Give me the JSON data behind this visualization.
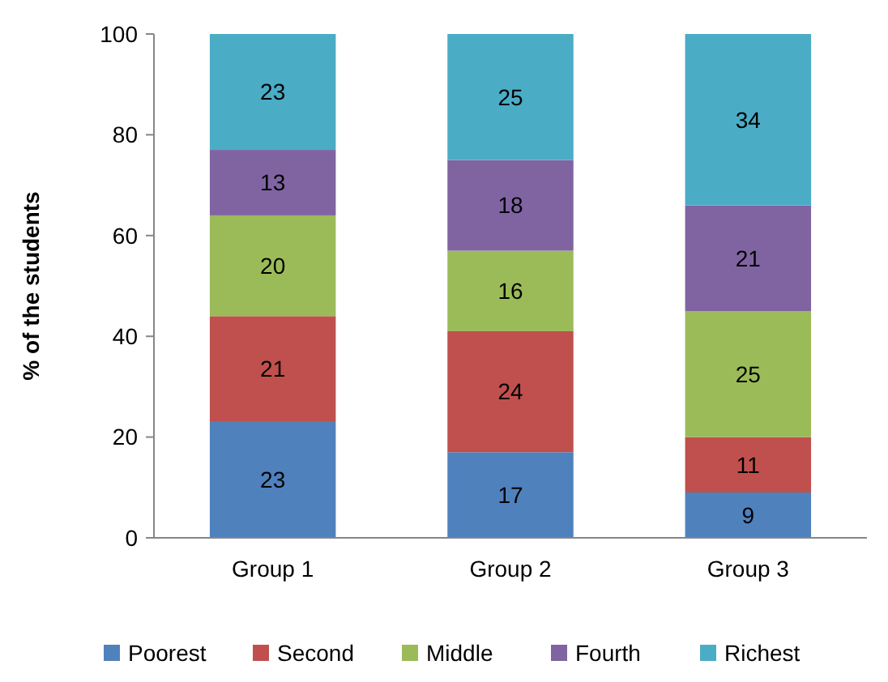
{
  "chart_data": {
    "type": "bar",
    "stacked": true,
    "ylabel": "% of the students",
    "categories": [
      "Group 1",
      "Group 2",
      "Group 3"
    ],
    "series": [
      {
        "name": "Poorest",
        "color": "#4f81bd",
        "values": [
          23,
          17,
          9
        ]
      },
      {
        "name": "Second",
        "color": "#c0504d",
        "values": [
          21,
          24,
          11
        ]
      },
      {
        "name": "Middle",
        "color": "#9bbb59",
        "values": [
          20,
          16,
          25
        ]
      },
      {
        "name": "Fourth",
        "color": "#8064a2",
        "values": [
          13,
          18,
          21
        ]
      },
      {
        "name": "Richest",
        "color": "#4bacc6",
        "values": [
          23,
          25,
          34
        ]
      }
    ],
    "ylim": [
      0,
      100
    ],
    "yticks": [
      0,
      20,
      40,
      60,
      80,
      100
    ],
    "data_labels": true,
    "legend": "bottom"
  }
}
